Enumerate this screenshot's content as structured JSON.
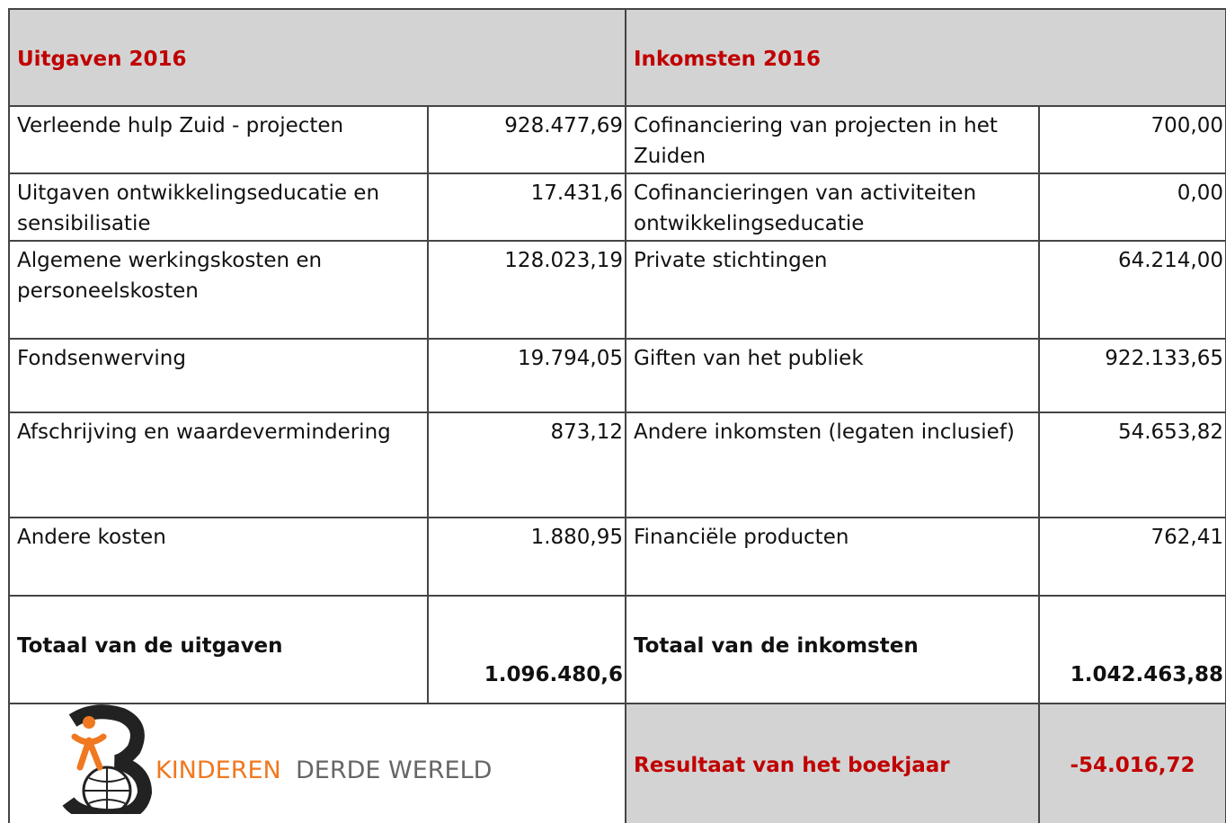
{
  "header": {
    "left": "Uitgaven 2016",
    "right": "Inkomsten 2016"
  },
  "table": {
    "rows": [
      [
        "Verleende hulp Zuid - projecten",
        "928.477,69",
        "Cofinanciering van projecten in het Zuiden",
        "700,00"
      ],
      [
        "Uitgaven ontwikkelingseducatie en sensibilisatie",
        "17.431,6",
        "Cofinancieringen van activiteiten ontwikkelingseducatie",
        "0,00"
      ],
      [
        "Algemene werkingskosten en personeelskosten",
        "128.023,19",
        "Private stichtingen",
        "64.214,00"
      ],
      [
        "Fondsenwerving",
        "19.794,05",
        "Giften van het publiek",
        "922.133,65"
      ],
      [
        "Afschrijving en waardevermindering",
        "873,12",
        "Andere inkomsten (legaten inclusief)",
        "54.653,82"
      ],
      [
        "Andere kosten",
        "1.880,95",
        "Financiële producten",
        "762,41"
      ]
    ]
  },
  "totals": [
    "Totaal van de uitgaven",
    "1.096.480,6",
    "Totaal van de inkomsten",
    "1.042.463,88"
  ],
  "result": {
    "label": "Resultaat van het boekjaar",
    "value": "-54.016,72"
  },
  "logo": {
    "word1": "KINDEREN",
    "word2": "DERDE WERELD"
  }
}
